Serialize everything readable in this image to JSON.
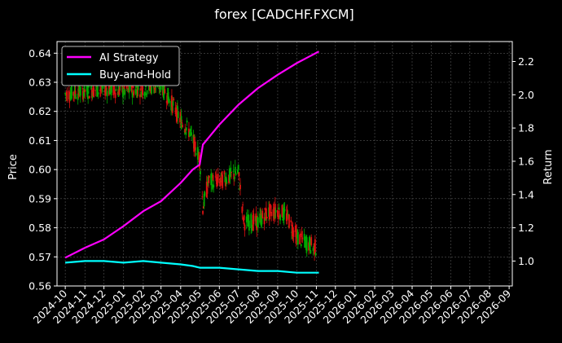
{
  "chart_data": {
    "type": "line",
    "title": "forex [CADCHF.FXCM]",
    "ylabel_left": "Price",
    "ylabel_right": "Return",
    "ylim_left": [
      0.56,
      0.644
    ],
    "ylim_right": [
      0.85,
      2.32
    ],
    "left_ticks": [
      "0.56",
      "0.57",
      "0.58",
      "0.59",
      "0.60",
      "0.61",
      "0.62",
      "0.63",
      "0.64"
    ],
    "right_ticks": [
      "1.0",
      "1.2",
      "1.4",
      "1.6",
      "1.8",
      "2.0",
      "2.2"
    ],
    "x_ticks": [
      "2024-10",
      "2024-11",
      "2024-12",
      "2025-01",
      "2025-02",
      "2025-03",
      "2025-04",
      "2025-05",
      "2025-06",
      "2025-07",
      "2025-08",
      "2025-09",
      "2025-10",
      "2025-11",
      "2025-12",
      "2026-01",
      "2026-02",
      "2026-03",
      "2026-04",
      "2026-05",
      "2026-06",
      "2026-07",
      "2026-08",
      "2026-09"
    ],
    "grid": true,
    "legend_position": "top-left",
    "price_series": {
      "name": "CADCHF price",
      "x": [
        "2024-10-01",
        "2024-11-01",
        "2024-12-01",
        "2025-01-01",
        "2025-02-01",
        "2025-03-01",
        "2025-03-15",
        "2025-04-01",
        "2025-04-15",
        "2025-05-01",
        "2025-05-06",
        "2025-05-15",
        "2025-06-01",
        "2025-07-01",
        "2025-07-10",
        "2025-08-01",
        "2025-08-15",
        "2025-09-01",
        "2025-09-15",
        "2025-10-01",
        "2025-10-15",
        "2025-11-01"
      ],
      "values": [
        0.626,
        0.627,
        0.628,
        0.627,
        0.628,
        0.629,
        0.624,
        0.617,
        0.613,
        0.604,
        0.587,
        0.596,
        0.596,
        0.599,
        0.582,
        0.582,
        0.585,
        0.586,
        0.584,
        0.577,
        0.575,
        0.573
      ]
    },
    "series": [
      {
        "name": "AI Strategy",
        "color": "#ff00ff",
        "x": [
          "2024-10-01",
          "2024-11-01",
          "2024-12-01",
          "2025-01-01",
          "2025-02-01",
          "2025-03-01",
          "2025-04-01",
          "2025-04-20",
          "2025-05-01",
          "2025-05-06",
          "2025-06-01",
          "2025-07-01",
          "2025-08-01",
          "2025-09-01",
          "2025-10-01",
          "2025-11-05"
        ],
        "values": [
          1.02,
          1.08,
          1.13,
          1.21,
          1.3,
          1.36,
          1.47,
          1.55,
          1.58,
          1.7,
          1.82,
          1.94,
          2.04,
          2.12,
          2.19,
          2.26
        ]
      },
      {
        "name": "Buy-and-Hold",
        "color": "#00ffff",
        "x": [
          "2024-10-01",
          "2024-11-01",
          "2024-12-01",
          "2025-01-01",
          "2025-02-01",
          "2025-03-01",
          "2025-04-01",
          "2025-04-20",
          "2025-05-01",
          "2025-06-01",
          "2025-07-01",
          "2025-08-01",
          "2025-09-01",
          "2025-10-01",
          "2025-11-05"
        ],
        "values": [
          0.99,
          1.0,
          1.0,
          0.99,
          1.0,
          0.99,
          0.98,
          0.97,
          0.96,
          0.96,
          0.95,
          0.94,
          0.94,
          0.93,
          0.93
        ]
      }
    ]
  },
  "colors": {
    "background": "#000000",
    "up_candle": "#00aa00",
    "down_candle": "#dd1111",
    "grid": "#555555"
  }
}
